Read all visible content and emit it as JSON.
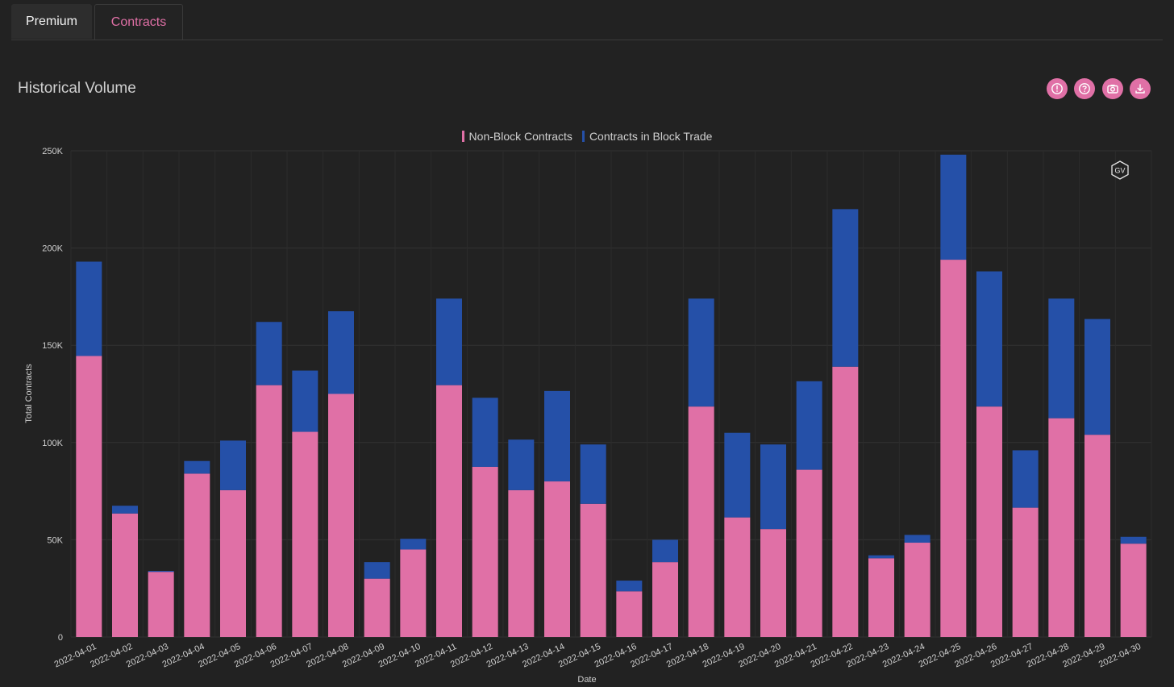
{
  "tabs": [
    {
      "label": "Premium"
    },
    {
      "label": "Contracts"
    }
  ],
  "panel": {
    "title": "Historical Volume",
    "icons": [
      "alert-icon",
      "help-icon",
      "camera-icon",
      "download-icon"
    ],
    "badge": "GV"
  },
  "colors": {
    "non_block": "#e070a6",
    "block": "#2550a8",
    "accent": "#e070a6",
    "background": "#222222"
  },
  "chart_data": {
    "type": "bar",
    "stacked": true,
    "xlabel": "Date",
    "ylabel": "Total Contracts",
    "ylim": [
      0,
      250000
    ],
    "yticks": [
      "0",
      "50K",
      "100K",
      "150K",
      "200K",
      "250K"
    ],
    "ytick_values": [
      0,
      50000,
      100000,
      150000,
      200000,
      250000
    ],
    "grid": true,
    "legend_position": "top-center",
    "categories": [
      "2022-04-01",
      "2022-04-02",
      "2022-04-03",
      "2022-04-04",
      "2022-04-05",
      "2022-04-06",
      "2022-04-07",
      "2022-04-08",
      "2022-04-09",
      "2022-04-10",
      "2022-04-11",
      "2022-04-12",
      "2022-04-13",
      "2022-04-14",
      "2022-04-15",
      "2022-04-16",
      "2022-04-17",
      "2022-04-18",
      "2022-04-19",
      "2022-04-20",
      "2022-04-21",
      "2022-04-22",
      "2022-04-23",
      "2022-04-24",
      "2022-04-25",
      "2022-04-26",
      "2022-04-27",
      "2022-04-28",
      "2022-04-29",
      "2022-04-30"
    ],
    "series": [
      {
        "name": "Non-Block Contracts",
        "values": [
          144500,
          63500,
          33500,
          84000,
          75500,
          129500,
          105500,
          125000,
          30000,
          45000,
          129500,
          87500,
          75500,
          80000,
          68500,
          23500,
          38500,
          118500,
          61500,
          55500,
          86000,
          139000,
          40500,
          48500,
          194000,
          118500,
          66500,
          112500,
          104000,
          48000
        ]
      },
      {
        "name": "Contracts in Block Trade",
        "values": [
          48500,
          4000,
          500,
          6500,
          25500,
          32500,
          31500,
          42500,
          8500,
          5500,
          44500,
          35500,
          26000,
          46500,
          30500,
          5500,
          11500,
          55500,
          43500,
          43500,
          45500,
          81000,
          1500,
          4000,
          54000,
          69500,
          29500,
          61500,
          59500,
          3500
        ]
      }
    ]
  }
}
